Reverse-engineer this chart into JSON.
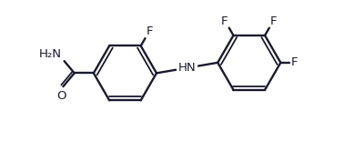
{
  "bg": "#ffffff",
  "bc": "#1a1a2e",
  "lw": 1.7,
  "lw2": 1.3,
  "fs": 9.5,
  "figsize": [
    3.9,
    1.55
  ],
  "dpi": 100,
  "xlim": [
    -0.1,
    3.9
  ],
  "ylim": [
    -0.05,
    1.55
  ],
  "r": 0.36,
  "off": 0.044,
  "lcx": 1.3,
  "lcy": 0.72,
  "rcx": 2.72,
  "rcy": 0.84
}
